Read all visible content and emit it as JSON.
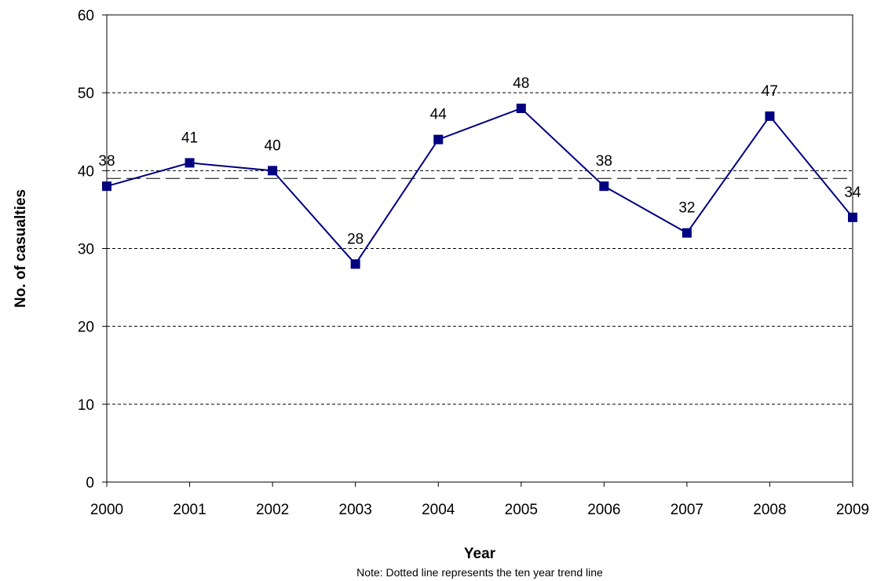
{
  "chart_data": {
    "type": "line",
    "title": "",
    "xlabel": "Year",
    "ylabel": "No. of casualties",
    "note": "Note: Dotted line represents the ten year trend line",
    "categories": [
      "2000",
      "2001",
      "2002",
      "2003",
      "2004",
      "2005",
      "2006",
      "2007",
      "2008",
      "2009"
    ],
    "series": [
      {
        "values": [
          38,
          41,
          40,
          28,
          44,
          48,
          38,
          32,
          47,
          34
        ],
        "color": "#000080",
        "marker": "square"
      }
    ],
    "trend_line": {
      "value": 39,
      "style": "dashed",
      "color": "#000000"
    },
    "ylim": [
      0,
      60
    ],
    "yticks": [
      0,
      10,
      20,
      30,
      40,
      50,
      60
    ],
    "grid": "horizontal dashed",
    "legend": "none"
  }
}
